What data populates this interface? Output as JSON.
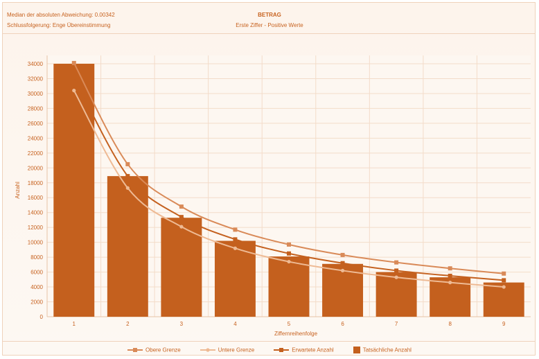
{
  "header": {
    "metric_line": "Median der absoluten Abweichung: 0.00342",
    "conclusion_line": "Schlussfolgerung: Enge Übereinstimmung",
    "title": "BETRAG",
    "subtitle": "Erste Ziffer - Positive Werte"
  },
  "colors": {
    "bar": "#c4601e",
    "upper": "#d98a58",
    "expected": "#c4601e",
    "lower": "#eeba94",
    "grid": "#f3dcc9",
    "text": "#c7621f"
  },
  "chart_data": {
    "type": "bar",
    "xlabel": "Ziffernreihenfolge",
    "ylabel": "Anzahl",
    "ylim": [
      0,
      34000
    ],
    "yticks": [
      0,
      2000,
      4000,
      6000,
      8000,
      10000,
      12000,
      14000,
      16000,
      18000,
      20000,
      22000,
      24000,
      26000,
      28000,
      30000,
      32000,
      34000
    ],
    "categories": [
      "1",
      "2",
      "3",
      "4",
      "5",
      "6",
      "7",
      "8",
      "9"
    ],
    "series": [
      {
        "name": "Obere Grenze",
        "kind": "line",
        "values": [
          34100,
          20500,
          14800,
          11700,
          9700,
          8300,
          7300,
          6500,
          5800
        ]
      },
      {
        "name": "Untere Grenze",
        "kind": "line",
        "values": [
          30400,
          17300,
          12100,
          9200,
          7400,
          6200,
          5300,
          4600,
          4000
        ]
      },
      {
        "name": "Erwartete Anzahl",
        "kind": "line",
        "values": [
          32200,
          18900,
          13400,
          10400,
          8500,
          7200,
          6200,
          5500,
          4900
        ]
      },
      {
        "name": "Tatsächliche Anzahl",
        "kind": "bar",
        "values": [
          34000,
          18900,
          13300,
          10200,
          8100,
          7100,
          6000,
          5300,
          4600
        ]
      }
    ],
    "legend_position": "bottom",
    "grid": true
  }
}
